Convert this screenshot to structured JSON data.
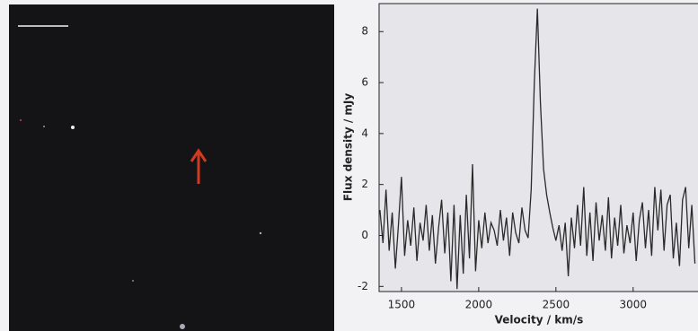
{
  "chart_data": {
    "type": "line",
    "xlabel": "Velocity / km/s",
    "ylabel": "Flux density / mJy",
    "x": [
      1360,
      1380,
      1400,
      1420,
      1440,
      1460,
      1480,
      1500,
      1520,
      1540,
      1560,
      1580,
      1600,
      1620,
      1640,
      1660,
      1680,
      1700,
      1720,
      1740,
      1760,
      1780,
      1800,
      1820,
      1840,
      1860,
      1880,
      1900,
      1920,
      1940,
      1960,
      1980,
      2000,
      2020,
      2040,
      2060,
      2080,
      2100,
      2120,
      2140,
      2160,
      2180,
      2200,
      2220,
      2240,
      2260,
      2280,
      2300,
      2320,
      2340,
      2360,
      2380,
      2400,
      2420,
      2440,
      2460,
      2480,
      2500,
      2520,
      2540,
      2560,
      2580,
      2600,
      2620,
      2640,
      2660,
      2680,
      2700,
      2720,
      2740,
      2760,
      2780,
      2800,
      2820,
      2840,
      2860,
      2880,
      2900,
      2920,
      2940,
      2960,
      2980,
      3000,
      3020,
      3040,
      3060,
      3080,
      3100,
      3120,
      3140,
      3160,
      3180,
      3200,
      3220,
      3240,
      3260,
      3280,
      3300,
      3320,
      3340,
      3360,
      3380,
      3400
    ],
    "series": [
      {
        "color": "#2a2a2a",
        "values": [
          1.0,
          -0.3,
          1.8,
          -0.6,
          0.9,
          -1.3,
          0.4,
          2.3,
          -0.8,
          0.6,
          -0.4,
          1.1,
          -1.0,
          0.5,
          -0.2,
          1.2,
          -0.6,
          0.8,
          -1.1,
          0.3,
          1.4,
          -0.7,
          0.9,
          -1.8,
          1.2,
          -2.1,
          0.8,
          -1.5,
          1.6,
          -0.9,
          2.8,
          -1.4,
          0.6,
          -0.5,
          0.9,
          -0.3,
          0.5,
          0.2,
          -0.4,
          1.0,
          -0.2,
          0.7,
          -0.8,
          0.9,
          0.1,
          -0.3,
          1.1,
          0.2,
          -0.1,
          1.8,
          6.0,
          8.9,
          5.2,
          2.6,
          1.6,
          0.9,
          0.3,
          -0.2,
          0.4,
          -0.6,
          0.5,
          -1.6,
          0.7,
          -0.5,
          1.2,
          -0.4,
          1.9,
          -0.8,
          0.9,
          -1.0,
          1.3,
          -0.2,
          0.8,
          -0.6,
          1.5,
          -0.9,
          0.7,
          -0.4,
          1.2,
          -0.7,
          0.4,
          -0.3,
          0.9,
          -1.0,
          0.6,
          1.3,
          -0.5,
          1.0,
          -0.8,
          1.9,
          0.2,
          1.8,
          -0.6,
          1.2,
          1.6,
          -0.9,
          0.5,
          -1.2,
          1.4,
          1.9,
          -0.5,
          1.2,
          -1.1
        ]
      }
    ],
    "xlim": [
      1355,
      3420
    ],
    "xticks": [
      1500,
      2000,
      2500,
      3000
    ],
    "ylim": [
      -2.2,
      9.1
    ],
    "yticks": [
      -2,
      0,
      2,
      4,
      6,
      8
    ]
  }
}
